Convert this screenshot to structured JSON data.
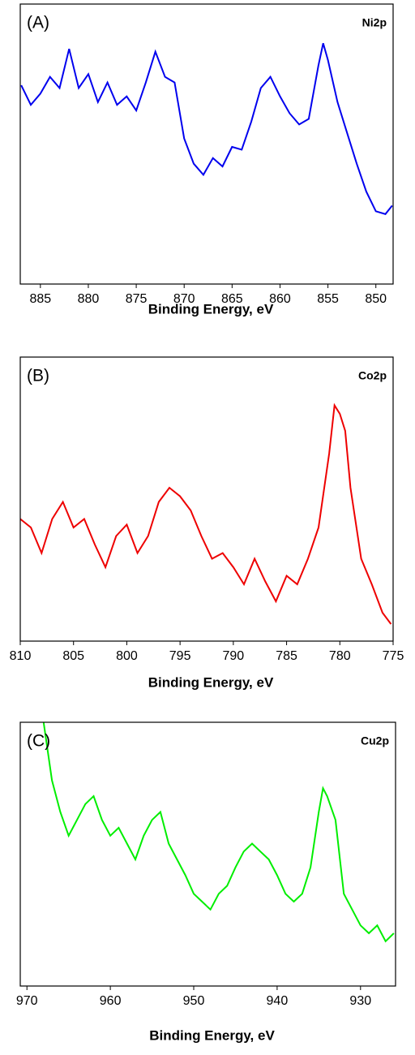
{
  "chart_data": [
    {
      "type": "line",
      "label": "(A)",
      "annotation": "Ni2p",
      "xlabel": "Binding Energy, eV",
      "color": "#0000ee",
      "xlim": [
        887.1,
        848.2
      ],
      "xticks": [
        885,
        880,
        875,
        870,
        865,
        860,
        855,
        850
      ],
      "ylim": [
        0,
        100
      ],
      "x": [
        887,
        886,
        885,
        884,
        883,
        882,
        881,
        880,
        879,
        878,
        877,
        876,
        875,
        874,
        873,
        872,
        871,
        870,
        869,
        868,
        867,
        866,
        865,
        864,
        863,
        862,
        861,
        860,
        859,
        858,
        857,
        856,
        855.5,
        855,
        854,
        853,
        852,
        851,
        850,
        849,
        848.3
      ],
      "values": [
        71,
        64,
        68,
        74,
        70,
        84,
        70,
        75,
        65,
        72,
        64,
        67,
        62,
        72,
        83,
        74,
        72,
        52,
        43,
        39,
        45,
        42,
        49,
        48,
        58,
        70,
        74,
        67,
        61,
        57,
        59,
        78,
        86,
        80,
        65,
        54,
        43,
        33,
        26,
        25,
        28
      ]
    },
    {
      "type": "line",
      "label": "(B)",
      "annotation": "Co2p",
      "xlabel": "Binding Energy, eV",
      "color": "#ee0000",
      "xlim": [
        810,
        775
      ],
      "xticks": [
        810,
        805,
        800,
        795,
        790,
        785,
        780,
        775
      ],
      "ylim": [
        0,
        100
      ],
      "x": [
        810,
        809,
        808,
        807,
        806,
        805,
        804,
        803,
        802,
        801,
        800,
        799,
        798,
        797,
        796,
        795,
        794,
        793,
        792,
        791,
        790,
        789,
        788,
        787,
        786,
        785,
        784,
        783,
        782,
        781,
        780.5,
        780,
        779.5,
        779,
        778,
        777,
        776,
        775.2
      ],
      "values": [
        43,
        40,
        31,
        43,
        49,
        40,
        43,
        34,
        26,
        37,
        41,
        31,
        37,
        49,
        54,
        51,
        46,
        37,
        29,
        31,
        26,
        20,
        29,
        21,
        14,
        23,
        20,
        29,
        40,
        66,
        83,
        80,
        74,
        54,
        29,
        20,
        10,
        6
      ]
    },
    {
      "type": "line",
      "label": "(C)",
      "annotation": "Cu2p",
      "xlabel": "Binding Energy, eV",
      "color": "#00ee00",
      "xlim": [
        970.8,
        925.8
      ],
      "xticks": [
        970,
        960,
        950,
        940,
        930
      ],
      "ylim": [
        0,
        100
      ],
      "x": [
        968,
        967,
        966,
        965,
        964,
        963,
        962,
        961,
        960,
        959,
        958,
        957,
        956,
        955,
        954,
        953,
        952,
        951,
        950,
        949,
        948,
        947,
        946,
        945,
        944,
        943,
        942,
        941,
        940,
        939,
        938,
        937,
        936,
        935,
        934.5,
        934,
        933,
        932,
        931,
        930,
        929,
        928,
        927,
        926
      ],
      "values": [
        100,
        78,
        66,
        57,
        63,
        69,
        72,
        63,
        57,
        60,
        54,
        48,
        57,
        63,
        66,
        54,
        48,
        42,
        35,
        32,
        29,
        35,
        38,
        45,
        51,
        54,
        51,
        48,
        42,
        35,
        32,
        35,
        45,
        66,
        75,
        72,
        63,
        35,
        29,
        23,
        20,
        23,
        17,
        20
      ]
    }
  ]
}
